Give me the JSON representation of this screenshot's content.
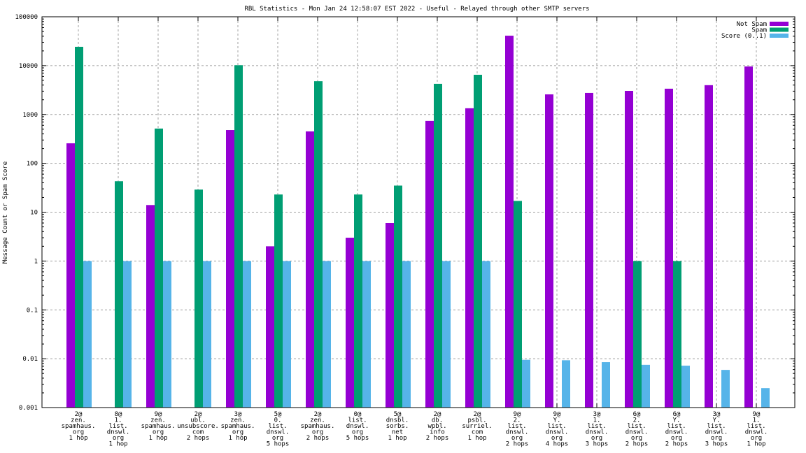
{
  "chart_data": {
    "type": "bar",
    "title": "RBL Statistics - Mon Jan 24 12:58:07 EST 2022 - Useful - Relayed through other SMTP servers",
    "xlabel": "",
    "ylabel": "Message Count or Spam Score",
    "yscale": "log",
    "ylim": [
      0.001,
      100000
    ],
    "yticks": [
      "0.001",
      "0.01",
      "0.1",
      "1",
      "10",
      "100",
      "1000",
      "10000",
      "100000"
    ],
    "grid": true,
    "legend_position": "top-right",
    "categories": [
      [
        "2@",
        "zen.",
        "spamhaus.",
        "org",
        "1 hop"
      ],
      [
        "8@",
        "1.",
        "list.",
        "dnswl.",
        "org",
        "1 hop"
      ],
      [
        "9@",
        "zen.",
        "spamhaus.",
        "org",
        "1 hop"
      ],
      [
        "2@",
        "ubl.",
        "unsubscore.",
        "com",
        "2 hops"
      ],
      [
        "3@",
        "zen.",
        "spamhaus.",
        "org",
        "1 hop"
      ],
      [
        "5@",
        "0.",
        "list.",
        "dnswl.",
        "org",
        "5 hops"
      ],
      [
        "2@",
        "zen.",
        "spamhaus.",
        "org",
        "2 hops"
      ],
      [
        "0@",
        "list.",
        "dnswl.",
        "org",
        "5 hops"
      ],
      [
        "5@",
        "dnsbl.",
        "sorbs.",
        "net",
        "1 hop"
      ],
      [
        "2@",
        "db.",
        "wpbl.",
        "info",
        "2 hops"
      ],
      [
        "2@",
        "psbl.",
        "surriel.",
        "com",
        "1 hop"
      ],
      [
        "9@",
        "2.",
        "list.",
        "dnswl.",
        "org",
        "2 hops"
      ],
      [
        "9@",
        "Y.",
        "list.",
        "dnswl.",
        "org",
        "4 hops"
      ],
      [
        "3@",
        "1.",
        "list.",
        "dnswl.",
        "org",
        "3 hops"
      ],
      [
        "6@",
        "2.",
        "list.",
        "dnswl.",
        "org",
        "2 hops"
      ],
      [
        "6@",
        "Y.",
        "list.",
        "dnswl.",
        "org",
        "2 hops"
      ],
      [
        "3@",
        "Y.",
        "list.",
        "dnswl.",
        "org",
        "3 hops"
      ],
      [
        "9@",
        "1.",
        "list.",
        "dnswl.",
        "org",
        "1 hop"
      ]
    ],
    "series": [
      {
        "name": "Not Spam",
        "color": "#9400d3",
        "values": [
          257,
          0,
          14,
          0,
          480,
          2,
          450,
          3,
          6,
          740,
          1340,
          41000,
          2580,
          2760,
          3040,
          3370,
          3980,
          9600
        ]
      },
      {
        "name": "Spam",
        "color": "#009e73",
        "values": [
          24300,
          43,
          515,
          29,
          10200,
          23,
          4800,
          23,
          35,
          4240,
          6500,
          17,
          0,
          0,
          1,
          1,
          0,
          0
        ]
      },
      {
        "name": "Score (0..1)",
        "color": "#56b4e9",
        "values": [
          1,
          1,
          1,
          1,
          1,
          1,
          1,
          1,
          1,
          1,
          1,
          0.0095,
          0.0093,
          0.0085,
          0.0075,
          0.0072,
          0.0059,
          0.0025
        ]
      }
    ]
  }
}
